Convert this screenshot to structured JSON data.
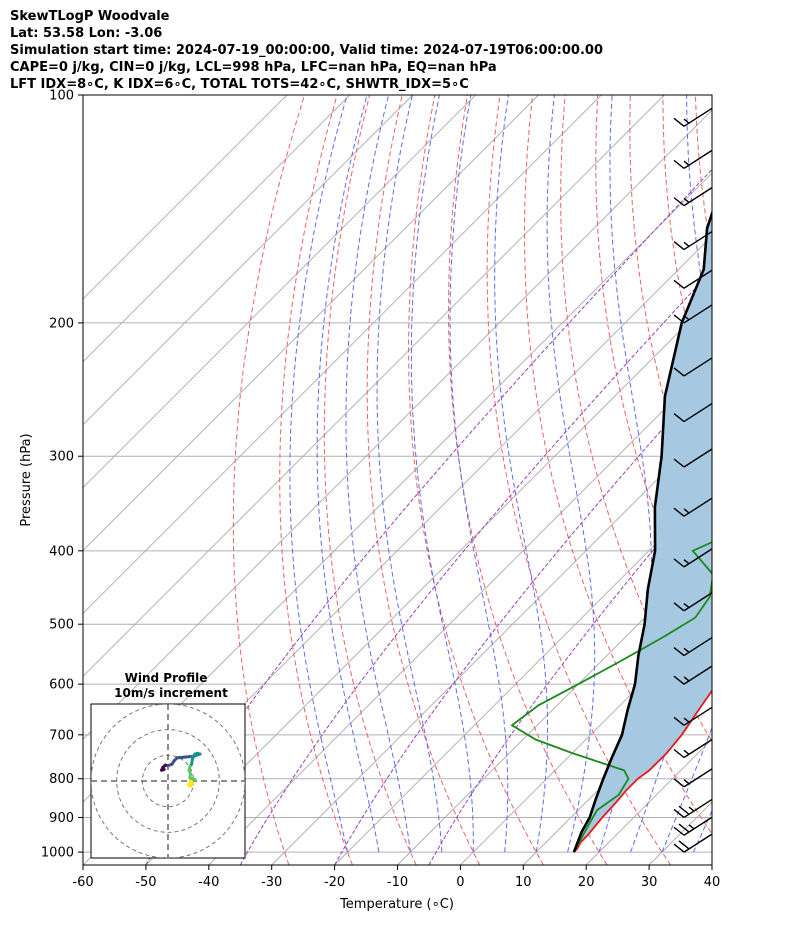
{
  "header": {
    "line1": "SkewTLogP Woodvale",
    "line2": "Lat: 53.58   Lon: -3.06",
    "line3": "Simulation start time: 2024-07-19_00:00:00, Valid time: 2024-07-19T06:00:00.00",
    "line4": "CAPE=0 j/kg, CIN=0 j/kg, LCL=998 hPa, LFC=nan hPa, EQ=nan hPa",
    "line5": "LFT IDX=8∘C, K IDX=6∘C, TOTAL TOTS=42∘C, SHWTR_IDX=5∘C"
  },
  "chart_data": {
    "type": "skewt-logp",
    "xlabel": "Temperature (∘C)",
    "ylabel": "Pressure (hPa)",
    "xlim": [
      -60,
      40
    ],
    "ylim": [
      1040,
      100
    ],
    "x_ticks": [
      -60,
      -50,
      -40,
      -30,
      -20,
      -10,
      0,
      10,
      20,
      30,
      40
    ],
    "y_ticks": [
      1000,
      900,
      800,
      700,
      600,
      500,
      400,
      300,
      200,
      100
    ],
    "series": [
      {
        "color": "#e8191b",
        "points": [
          [
            16,
            1000
          ],
          [
            16,
            990
          ],
          [
            15.5,
            970
          ],
          [
            15.5,
            950
          ],
          [
            15,
            900
          ],
          [
            14.8,
            860
          ],
          [
            14.5,
            830
          ],
          [
            14.5,
            800
          ],
          [
            15,
            780
          ],
          [
            15,
            740
          ],
          [
            14.5,
            700
          ],
          [
            13,
            640
          ],
          [
            12,
            600
          ],
          [
            10,
            550
          ],
          [
            8,
            500
          ],
          [
            6,
            450
          ],
          [
            5,
            400
          ],
          [
            2,
            350
          ],
          [
            -1,
            300
          ],
          [
            -3,
            270
          ],
          [
            -6,
            240
          ],
          [
            -8,
            220
          ],
          [
            -9,
            200
          ],
          [
            -8.5,
            185
          ],
          [
            -6,
            170
          ],
          [
            -3,
            155
          ],
          [
            2,
            140
          ],
          [
            6,
            130
          ],
          [
            8,
            120
          ],
          [
            10,
            110
          ],
          [
            10.5,
            100
          ]
        ]
      },
      {
        "color": "#1a8a1a",
        "points": [
          [
            16,
            1000
          ],
          [
            15,
            960
          ],
          [
            14,
            920
          ],
          [
            13,
            880
          ],
          [
            14,
            840
          ],
          [
            13,
            800
          ],
          [
            11,
            780
          ],
          [
            0,
            740
          ],
          [
            -8,
            710
          ],
          [
            -14,
            680
          ],
          [
            -13,
            640
          ],
          [
            -10,
            600
          ],
          [
            -7,
            560
          ],
          [
            -4,
            520
          ],
          [
            -2,
            490
          ],
          [
            -3,
            460
          ],
          [
            -6,
            430
          ],
          [
            -13,
            400
          ],
          [
            -8,
            370
          ],
          [
            -4,
            340
          ],
          [
            -4,
            310
          ],
          [
            -6,
            290
          ],
          [
            -9,
            270
          ],
          [
            -10,
            240
          ],
          [
            -11,
            215
          ],
          [
            -11,
            200
          ],
          [
            -10.5,
            185
          ],
          [
            -10,
            170
          ],
          [
            -12,
            155
          ],
          [
            -18,
            140
          ],
          [
            -19,
            130
          ],
          [
            -16,
            120
          ],
          [
            -13,
            110
          ],
          [
            -11,
            100
          ]
        ]
      },
      {
        "color": "#000000",
        "points": [
          [
            16,
            1000
          ],
          [
            15,
            970
          ],
          [
            14,
            940
          ],
          [
            13,
            900
          ],
          [
            11,
            850
          ],
          [
            9,
            800
          ],
          [
            7,
            750
          ],
          [
            5,
            700
          ],
          [
            2,
            650
          ],
          [
            -1,
            600
          ],
          [
            -5,
            550
          ],
          [
            -9,
            500
          ],
          [
            -14,
            450
          ],
          [
            -19,
            400
          ],
          [
            -26,
            350
          ],
          [
            -33,
            300
          ],
          [
            -42,
            250
          ],
          [
            -51,
            200
          ],
          [
            -56,
            170
          ],
          [
            -62,
            150
          ],
          [
            -67,
            130
          ],
          [
            -72,
            115
          ],
          [
            -76,
            100
          ]
        ]
      }
    ],
    "wind_barbs": [
      {
        "p": 1000,
        "speed": 20
      },
      {
        "p": 950,
        "speed": 25
      },
      {
        "p": 900,
        "speed": 25
      },
      {
        "p": 820,
        "speed": 15
      },
      {
        "p": 750,
        "speed": 15
      },
      {
        "p": 680,
        "speed": 15
      },
      {
        "p": 600,
        "speed": 15
      },
      {
        "p": 550,
        "speed": 15
      },
      {
        "p": 480,
        "speed": 15
      },
      {
        "p": 420,
        "speed": 15
      },
      {
        "p": 360,
        "speed": 15
      },
      {
        "p": 310,
        "speed": 10
      },
      {
        "p": 270,
        "speed": 10
      },
      {
        "p": 235,
        "speed": 10
      },
      {
        "p": 200,
        "speed": 15
      },
      {
        "p": 180,
        "speed": 10
      },
      {
        "p": 160,
        "speed": 15
      },
      {
        "p": 140,
        "speed": 15
      },
      {
        "p": 125,
        "speed": 15
      },
      {
        "p": 110,
        "speed": 15
      }
    ],
    "hodograph": {
      "title": "Wind Profile",
      "subtitle": "10m/s increment",
      "rings_ms": [
        10,
        20,
        30
      ],
      "range_ms": 30,
      "uv_path": [
        [
          9,
          0.5
        ],
        [
          9.5,
          -0.8
        ],
        [
          9,
          -2
        ],
        [
          8,
          -1.5
        ],
        [
          9.5,
          1
        ],
        [
          10.5,
          0.5
        ],
        [
          8.5,
          1.2
        ],
        [
          8.8,
          2.8
        ],
        [
          8.2,
          4.2
        ],
        [
          8.5,
          5.5
        ],
        [
          9.2,
          6.5
        ],
        [
          9.5,
          8.5
        ],
        [
          10.5,
          10.5
        ],
        [
          11.5,
          10.8
        ],
        [
          12.5,
          10.5
        ],
        [
          10.5,
          9.8
        ],
        [
          8.5,
          9.5
        ],
        [
          6.5,
          9.3
        ],
        [
          3.5,
          9
        ],
        [
          2.5,
          8
        ],
        [
          1.5,
          6.5
        ],
        [
          0,
          6
        ],
        [
          -1,
          6.2
        ],
        [
          -2,
          5.3
        ],
        [
          -2.5,
          4.2
        ],
        [
          -1.5,
          4.5
        ]
      ]
    }
  }
}
